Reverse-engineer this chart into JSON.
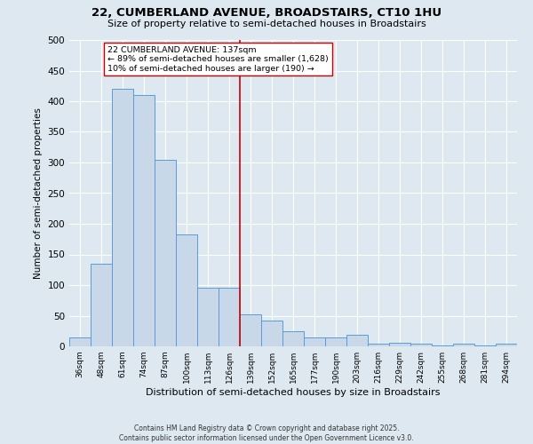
{
  "title": "22, CUMBERLAND AVENUE, BROADSTAIRS, CT10 1HU",
  "subtitle": "Size of property relative to semi-detached houses in Broadstairs",
  "xlabel": "Distribution of semi-detached houses by size in Broadstairs",
  "ylabel": "Number of semi-detached properties",
  "footer_line1": "Contains HM Land Registry data © Crown copyright and database right 2025.",
  "footer_line2": "Contains public sector information licensed under the Open Government Licence v3.0.",
  "categories": [
    "36sqm",
    "48sqm",
    "61sqm",
    "74sqm",
    "87sqm",
    "100sqm",
    "113sqm",
    "126sqm",
    "139sqm",
    "152sqm",
    "165sqm",
    "177sqm",
    "190sqm",
    "203sqm",
    "216sqm",
    "229sqm",
    "242sqm",
    "255sqm",
    "268sqm",
    "281sqm",
    "294sqm"
  ],
  "values": [
    15,
    135,
    420,
    410,
    305,
    182,
    96,
    96,
    52,
    42,
    25,
    15,
    15,
    19,
    5,
    6,
    5,
    1,
    5,
    1,
    4
  ],
  "bar_color": "#c8d8e8",
  "bar_edge_color": "#5b9bd5",
  "vline_index": 8,
  "vline_color": "#cc0000",
  "annotation_title": "22 CUMBERLAND AVENUE: 137sqm",
  "annotation_line1": "← 89% of semi-detached houses are smaller (1,628)",
  "annotation_line2": "10% of semi-detached houses are larger (190) →",
  "annotation_box_color": "#ffffff",
  "annotation_box_edge": "#cc0000",
  "ylim": [
    0,
    500
  ],
  "yticks": [
    0,
    50,
    100,
    150,
    200,
    250,
    300,
    350,
    400,
    450,
    500
  ],
  "background_color": "#dde8f0",
  "grid_color": "#ffffff"
}
